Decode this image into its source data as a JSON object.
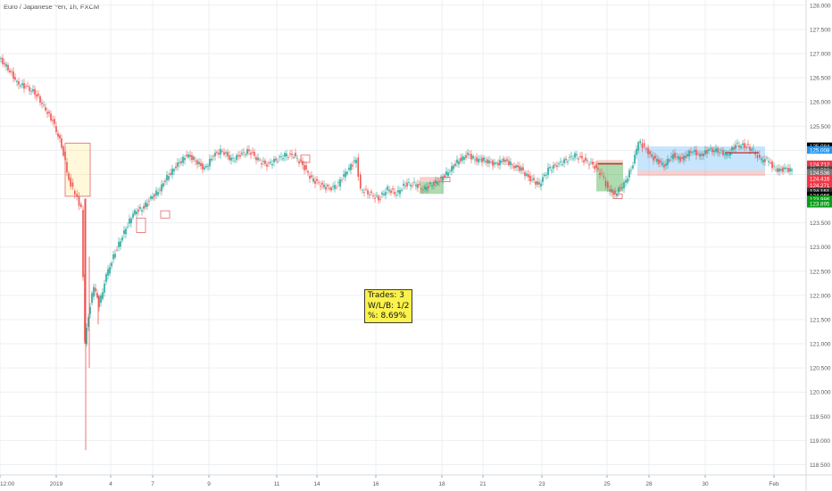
{
  "header": {
    "title": "Euro / Japanese Yen, 1h, FXCM"
  },
  "stats": {
    "trades": "Trades: 3",
    "wlb": "W/L/B: 1/2",
    "pct": "%: 8.69%"
  },
  "colors": {
    "up": "#26a69a",
    "down": "#ef5350",
    "grid": "#eceff2",
    "axis": "#d6d9dc",
    "long_zone": "rgba(76,175,80,0.45)",
    "short_zone": "rgba(239,83,80,0.28)",
    "entry_zone": "rgba(33,150,243,0.25)",
    "drop_zone": "rgba(255,235,150,0.35)"
  },
  "chart_data": {
    "type": "line",
    "title": "Euro / Japanese Yen, 1h, FXCM",
    "symbol": "EURJPY",
    "ylim": [
      118.25,
      128.1
    ],
    "y_ticks": [
      "128.000",
      "127.500",
      "127.000",
      "126.500",
      "126.000",
      "125.500",
      "125.000",
      "124.500",
      "124.000",
      "123.500",
      "123.000",
      "122.500",
      "122.000",
      "121.500",
      "121.000",
      "120.500",
      "120.000",
      "119.500",
      "119.000",
      "118.500"
    ],
    "x_ticks": [
      {
        "label": "12:00",
        "x": 0
      },
      {
        "label": "2019",
        "x": 63
      },
      {
        "label": "4",
        "x": 124
      },
      {
        "label": "7",
        "x": 171
      },
      {
        "label": "9",
        "x": 234
      },
      {
        "label": "11",
        "x": 310
      },
      {
        "label": "14",
        "x": 355
      },
      {
        "label": "16",
        "x": 421
      },
      {
        "label": "18",
        "x": 495
      },
      {
        "label": "21",
        "x": 541
      },
      {
        "label": "23",
        "x": 607
      },
      {
        "label": "25",
        "x": 680
      },
      {
        "label": "28",
        "x": 727
      },
      {
        "label": "30",
        "x": 790
      },
      {
        "label": "Feb",
        "x": 867
      }
    ],
    "price_path": [
      [
        0,
        126.9
      ],
      [
        10,
        126.7
      ],
      [
        20,
        126.4
      ],
      [
        30,
        126.3
      ],
      [
        40,
        126.2
      ],
      [
        50,
        125.9
      ],
      [
        60,
        125.6
      ],
      [
        70,
        125.1
      ],
      [
        78,
        124.4
      ],
      [
        85,
        124.1
      ],
      [
        92,
        123.8
      ],
      [
        96,
        121.0
      ],
      [
        100,
        121.6
      ],
      [
        106,
        122.2
      ],
      [
        112,
        121.8
      ],
      [
        120,
        122.4
      ],
      [
        130,
        122.9
      ],
      [
        140,
        123.3
      ],
      [
        150,
        123.7
      ],
      [
        160,
        123.8
      ],
      [
        170,
        124.0
      ],
      [
        180,
        124.2
      ],
      [
        190,
        124.5
      ],
      [
        200,
        124.7
      ],
      [
        210,
        124.9
      ],
      [
        220,
        124.8
      ],
      [
        230,
        124.6
      ],
      [
        240,
        124.9
      ],
      [
        250,
        125.0
      ],
      [
        260,
        124.8
      ],
      [
        270,
        124.9
      ],
      [
        280,
        125.0
      ],
      [
        290,
        124.8
      ],
      [
        300,
        124.7
      ],
      [
        310,
        124.8
      ],
      [
        320,
        124.9
      ],
      [
        330,
        124.9
      ],
      [
        340,
        124.7
      ],
      [
        350,
        124.4
      ],
      [
        360,
        124.3
      ],
      [
        370,
        124.2
      ],
      [
        380,
        124.3
      ],
      [
        390,
        124.6
      ],
      [
        400,
        124.8
      ],
      [
        405,
        124.2
      ],
      [
        415,
        124.1
      ],
      [
        425,
        124.0
      ],
      [
        435,
        124.2
      ],
      [
        445,
        124.1
      ],
      [
        455,
        124.3
      ],
      [
        465,
        124.3
      ],
      [
        475,
        124.2
      ],
      [
        485,
        124.3
      ],
      [
        495,
        124.4
      ],
      [
        505,
        124.6
      ],
      [
        515,
        124.8
      ],
      [
        525,
        124.9
      ],
      [
        535,
        124.8
      ],
      [
        545,
        124.8
      ],
      [
        555,
        124.7
      ],
      [
        565,
        124.8
      ],
      [
        575,
        124.7
      ],
      [
        585,
        124.6
      ],
      [
        595,
        124.4
      ],
      [
        605,
        124.3
      ],
      [
        615,
        124.6
      ],
      [
        625,
        124.7
      ],
      [
        635,
        124.8
      ],
      [
        645,
        124.9
      ],
      [
        655,
        124.8
      ],
      [
        665,
        124.7
      ],
      [
        675,
        124.5
      ],
      [
        682,
        124.2
      ],
      [
        690,
        124.1
      ],
      [
        700,
        124.3
      ],
      [
        710,
        124.7
      ],
      [
        716,
        125.2
      ],
      [
        725,
        125.0
      ],
      [
        735,
        124.8
      ],
      [
        745,
        124.7
      ],
      [
        755,
        124.9
      ],
      [
        765,
        124.8
      ],
      [
        775,
        125.0
      ],
      [
        785,
        124.9
      ],
      [
        795,
        125.0
      ],
      [
        805,
        125.0
      ],
      [
        815,
        124.9
      ],
      [
        825,
        125.1
      ],
      [
        835,
        125.1
      ],
      [
        845,
        125.0
      ],
      [
        852,
        124.8
      ],
      [
        860,
        124.8
      ],
      [
        870,
        124.6
      ],
      [
        880,
        124.6
      ],
      [
        888,
        124.6
      ]
    ],
    "wicks": [
      [
        96,
        121.0,
        118.8
      ],
      [
        100,
        122.8,
        120.5
      ],
      [
        110,
        122.0,
        121.4
      ]
    ],
    "price_tags": [
      {
        "label": "125.084",
        "value": 125.084,
        "color": "#000000"
      },
      {
        "label": "125.008",
        "value": 125.008,
        "color": "#2196f3"
      },
      {
        "label": "124.712",
        "value": 124.712,
        "color": "#f23645"
      },
      {
        "label": "124.592",
        "value": 124.592,
        "color": "#444444"
      },
      {
        "label": "124.536",
        "value": 124.536,
        "color": "#7a7a7a"
      },
      {
        "label": "124.416",
        "value": 124.416,
        "color": "#f23645"
      },
      {
        "label": "124.271",
        "value": 124.271,
        "color": "#f23645"
      },
      {
        "label": "124.151",
        "value": 124.151,
        "color": "#333333"
      },
      {
        "label": "124.066",
        "value": 124.066,
        "color": "#000000"
      },
      {
        "label": "123.986",
        "value": 123.986,
        "color": "#0a9d18"
      },
      {
        "label": "123.895",
        "value": 123.895,
        "color": "#0a9d18"
      }
    ],
    "zones": [
      {
        "kind": "drop",
        "x0": 73,
        "x1": 101,
        "y0": 125.15,
        "y1": 124.05
      },
      {
        "kind": "long",
        "x0": 470,
        "x1": 497,
        "y0": 124.35,
        "y1": 124.1
      },
      {
        "kind": "short",
        "x0": 470,
        "x1": 497,
        "y0": 124.45,
        "y1": 124.35
      },
      {
        "kind": "long",
        "x0": 668,
        "x1": 698,
        "y0": 124.75,
        "y1": 124.15
      },
      {
        "kind": "short",
        "x0": 668,
        "x1": 698,
        "y0": 124.8,
        "y1": 124.7
      },
      {
        "kind": "entry",
        "x0": 714,
        "x1": 857,
        "y0": 125.08,
        "y1": 124.58
      },
      {
        "kind": "short",
        "x0": 714,
        "x1": 857,
        "y0": 124.58,
        "y1": 124.47
      }
    ]
  }
}
